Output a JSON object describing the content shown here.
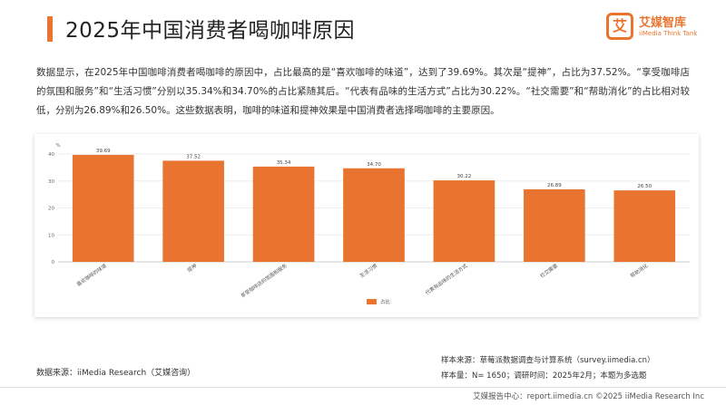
{
  "header": {
    "title": "2025年中国消费者喝咖啡原因",
    "logo_mark": "艾",
    "logo_name": "艾媒智库",
    "logo_sub": "iiMedia Think Tank"
  },
  "description": "数据显示，在2025年中国咖啡消费者喝咖啡的原因中，占比最高的是“喜欢咖啡的味道”，达到了39.69%。其次是“提神”，占比为37.52%。“享受咖啡店的氛围和服务”和“生活习惯”分别以35.34%和34.70%的占比紧随其后。“代表有品味的生活方式”占比为30.22%。“社交需要”和“帮助消化”的占比相对较低，分别为26.89%和26.50%。这些数据表明，咖啡的味道和提神效果是中国消费者选择喝咖啡的主要原因。",
  "colors": {
    "accent": "#e8742f",
    "bar": "#e8742f"
  },
  "chart_data": {
    "type": "bar",
    "unit_label": "%",
    "categories": [
      "喜欢咖啡的味道",
      "提神",
      "享受咖啡店的氛围和服务",
      "生活习惯",
      "代表有品味的生活方式",
      "社交需要",
      "帮助消化"
    ],
    "series": [
      {
        "name": "占比",
        "values": [
          39.69,
          37.52,
          35.34,
          34.7,
          30.22,
          26.89,
          26.5
        ],
        "labels": [
          "39.69",
          "37.52",
          "35.34",
          "34.70",
          "30.22",
          "26.89",
          "26.50"
        ]
      }
    ],
    "yticks": [
      "0",
      "10",
      "20",
      "30",
      "40"
    ],
    "ylim": [
      0,
      40
    ],
    "legend_position": "bottom-center",
    "grid": true
  },
  "source_left": "数据来源：iiMedia Research（艾媒咨询）",
  "source_right": [
    "样本来源：草莓派数据调查与计算系统（survey.iimedia.cn）",
    "样本量：N= 1650；调研时间：2025年2月；本题为多选题"
  ],
  "footer": "艾媒报告中心：report.iimedia.cn ©2025 iiMedia Research Inc"
}
